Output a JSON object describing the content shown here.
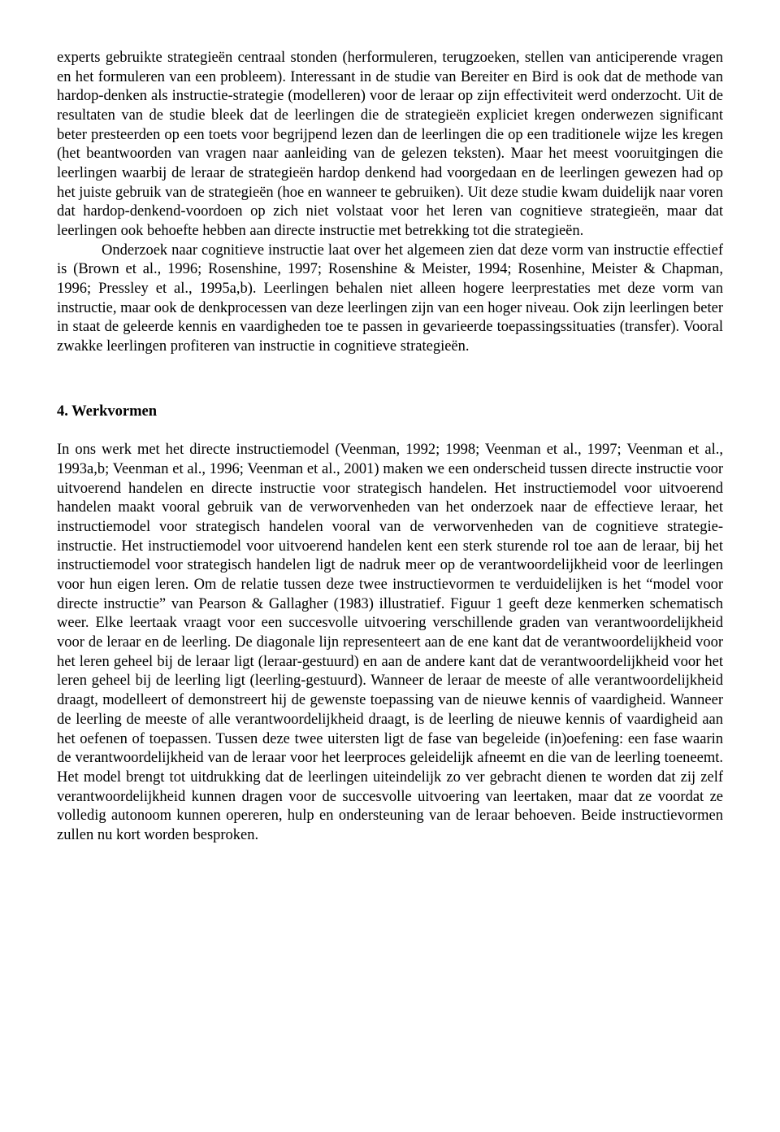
{
  "para1": "experts gebruikte strategieën centraal stonden (herformuleren, terugzoeken, stellen van anticiperende vragen en het formuleren van een probleem). Interessant in de studie van Bereiter en Bird is ook dat de methode van hardop-denken als instructie-strategie (modelleren) voor de leraar op zijn effectiviteit werd onderzocht. Uit de resultaten van de studie bleek dat de leerlingen die de strategieën expliciet kregen onderwezen significant beter presteerden op een toets voor begrijpend lezen dan de leerlingen die op een traditionele wijze les kregen (het beantwoorden van vragen naar aanleiding van de gelezen teksten). Maar het meest vooruitgingen die leerlingen waarbij de leraar de strategieën hardop denkend had voorgedaan en de leerlingen gewezen had op het juiste gebruik van de strategieën (hoe en wanneer te gebruiken). Uit deze studie kwam duidelijk naar voren dat hardop-denkend-voordoen op zich niet volstaat voor het leren van cognitieve strategieën, maar dat leerlingen ook behoefte hebben aan directe instructie met betrekking tot die strategieën.",
  "para2": "Onderzoek naar cognitieve instructie laat over het algemeen zien dat deze vorm van instructie effectief is (Brown et al., 1996; Rosenshine, 1997; Rosenshine & Meister, 1994; Rosenhine, Meister & Chapman, 1996; Pressley et al., 1995a,b). Leerlingen behalen niet alleen hogere leerprestaties met deze vorm van instructie, maar ook de denkprocessen van deze leerlingen zijn van een hoger niveau. Ook zijn leerlingen beter in staat de geleerde kennis en vaardigheden toe te passen in gevarieerde toepassingssituaties (transfer). Vooral zwakke leerlingen profiteren van instructie in cognitieve strategieën.",
  "heading": "4. Werkvormen",
  "para3": "In ons werk met het directe instructiemodel (Veenman, 1992; 1998; Veenman et al., 1997; Veenman et al., 1993a,b; Veenman et al., 1996; Veenman et al., 2001) maken we een onderscheid tussen directe instructie voor uitvoerend handelen en directe instructie voor strategisch handelen. Het instructiemodel voor uitvoerend handelen maakt vooral gebruik van de verworvenheden van het onderzoek naar de effectieve leraar, het instructiemodel voor strategisch handelen vooral van de verworvenheden van de cognitieve strategie-instructie. Het instructiemodel voor uitvoerend handelen kent een sterk sturende rol toe aan de leraar, bij het instructiemodel voor strategisch handelen ligt de nadruk meer op de verantwoordelijkheid voor de leerlingen voor hun eigen leren. Om de relatie tussen deze twee instructievormen te verduidelijken is het “model voor directe instructie” van Pearson & Gallagher (1983) illustratief. Figuur 1 geeft deze kenmerken schematisch weer. Elke leertaak vraagt voor een succesvolle uitvoering verschillende graden van verantwoordelijkheid voor de leraar en de leerling. De diagonale lijn representeert aan de ene kant dat de verantwoordelijkheid voor het leren geheel bij de leraar ligt (leraar-gestuurd) en aan de andere kant dat de verantwoordelijkheid voor het leren geheel bij de leerling ligt (leerling-gestuurd). Wanneer de leraar de meeste of alle verantwoordelijkheid draagt, modelleert of demonstreert hij de gewenste toepassing van de nieuwe kennis of vaardigheid. Wanneer de leerling de meeste of alle verantwoordelijkheid draagt, is de leerling de nieuwe kennis of vaardigheid aan het oefenen of toepassen. Tussen deze twee uitersten ligt de fase van begeleide (in)oefening: een fase waarin de verantwoordelijkheid van de leraar voor het leerproces geleidelijk afneemt en die van de leerling toeneemt. Het model brengt tot uitdrukking dat de leerlingen uiteindelijk zo ver gebracht dienen te worden dat zij zelf verantwoordelijkheid kunnen dragen voor de succesvolle uitvoering van leertaken, maar dat ze voordat ze volledig autonoom kunnen opereren, hulp en ondersteuning van de leraar behoeven. Beide instructievormen zullen nu kort worden besproken."
}
